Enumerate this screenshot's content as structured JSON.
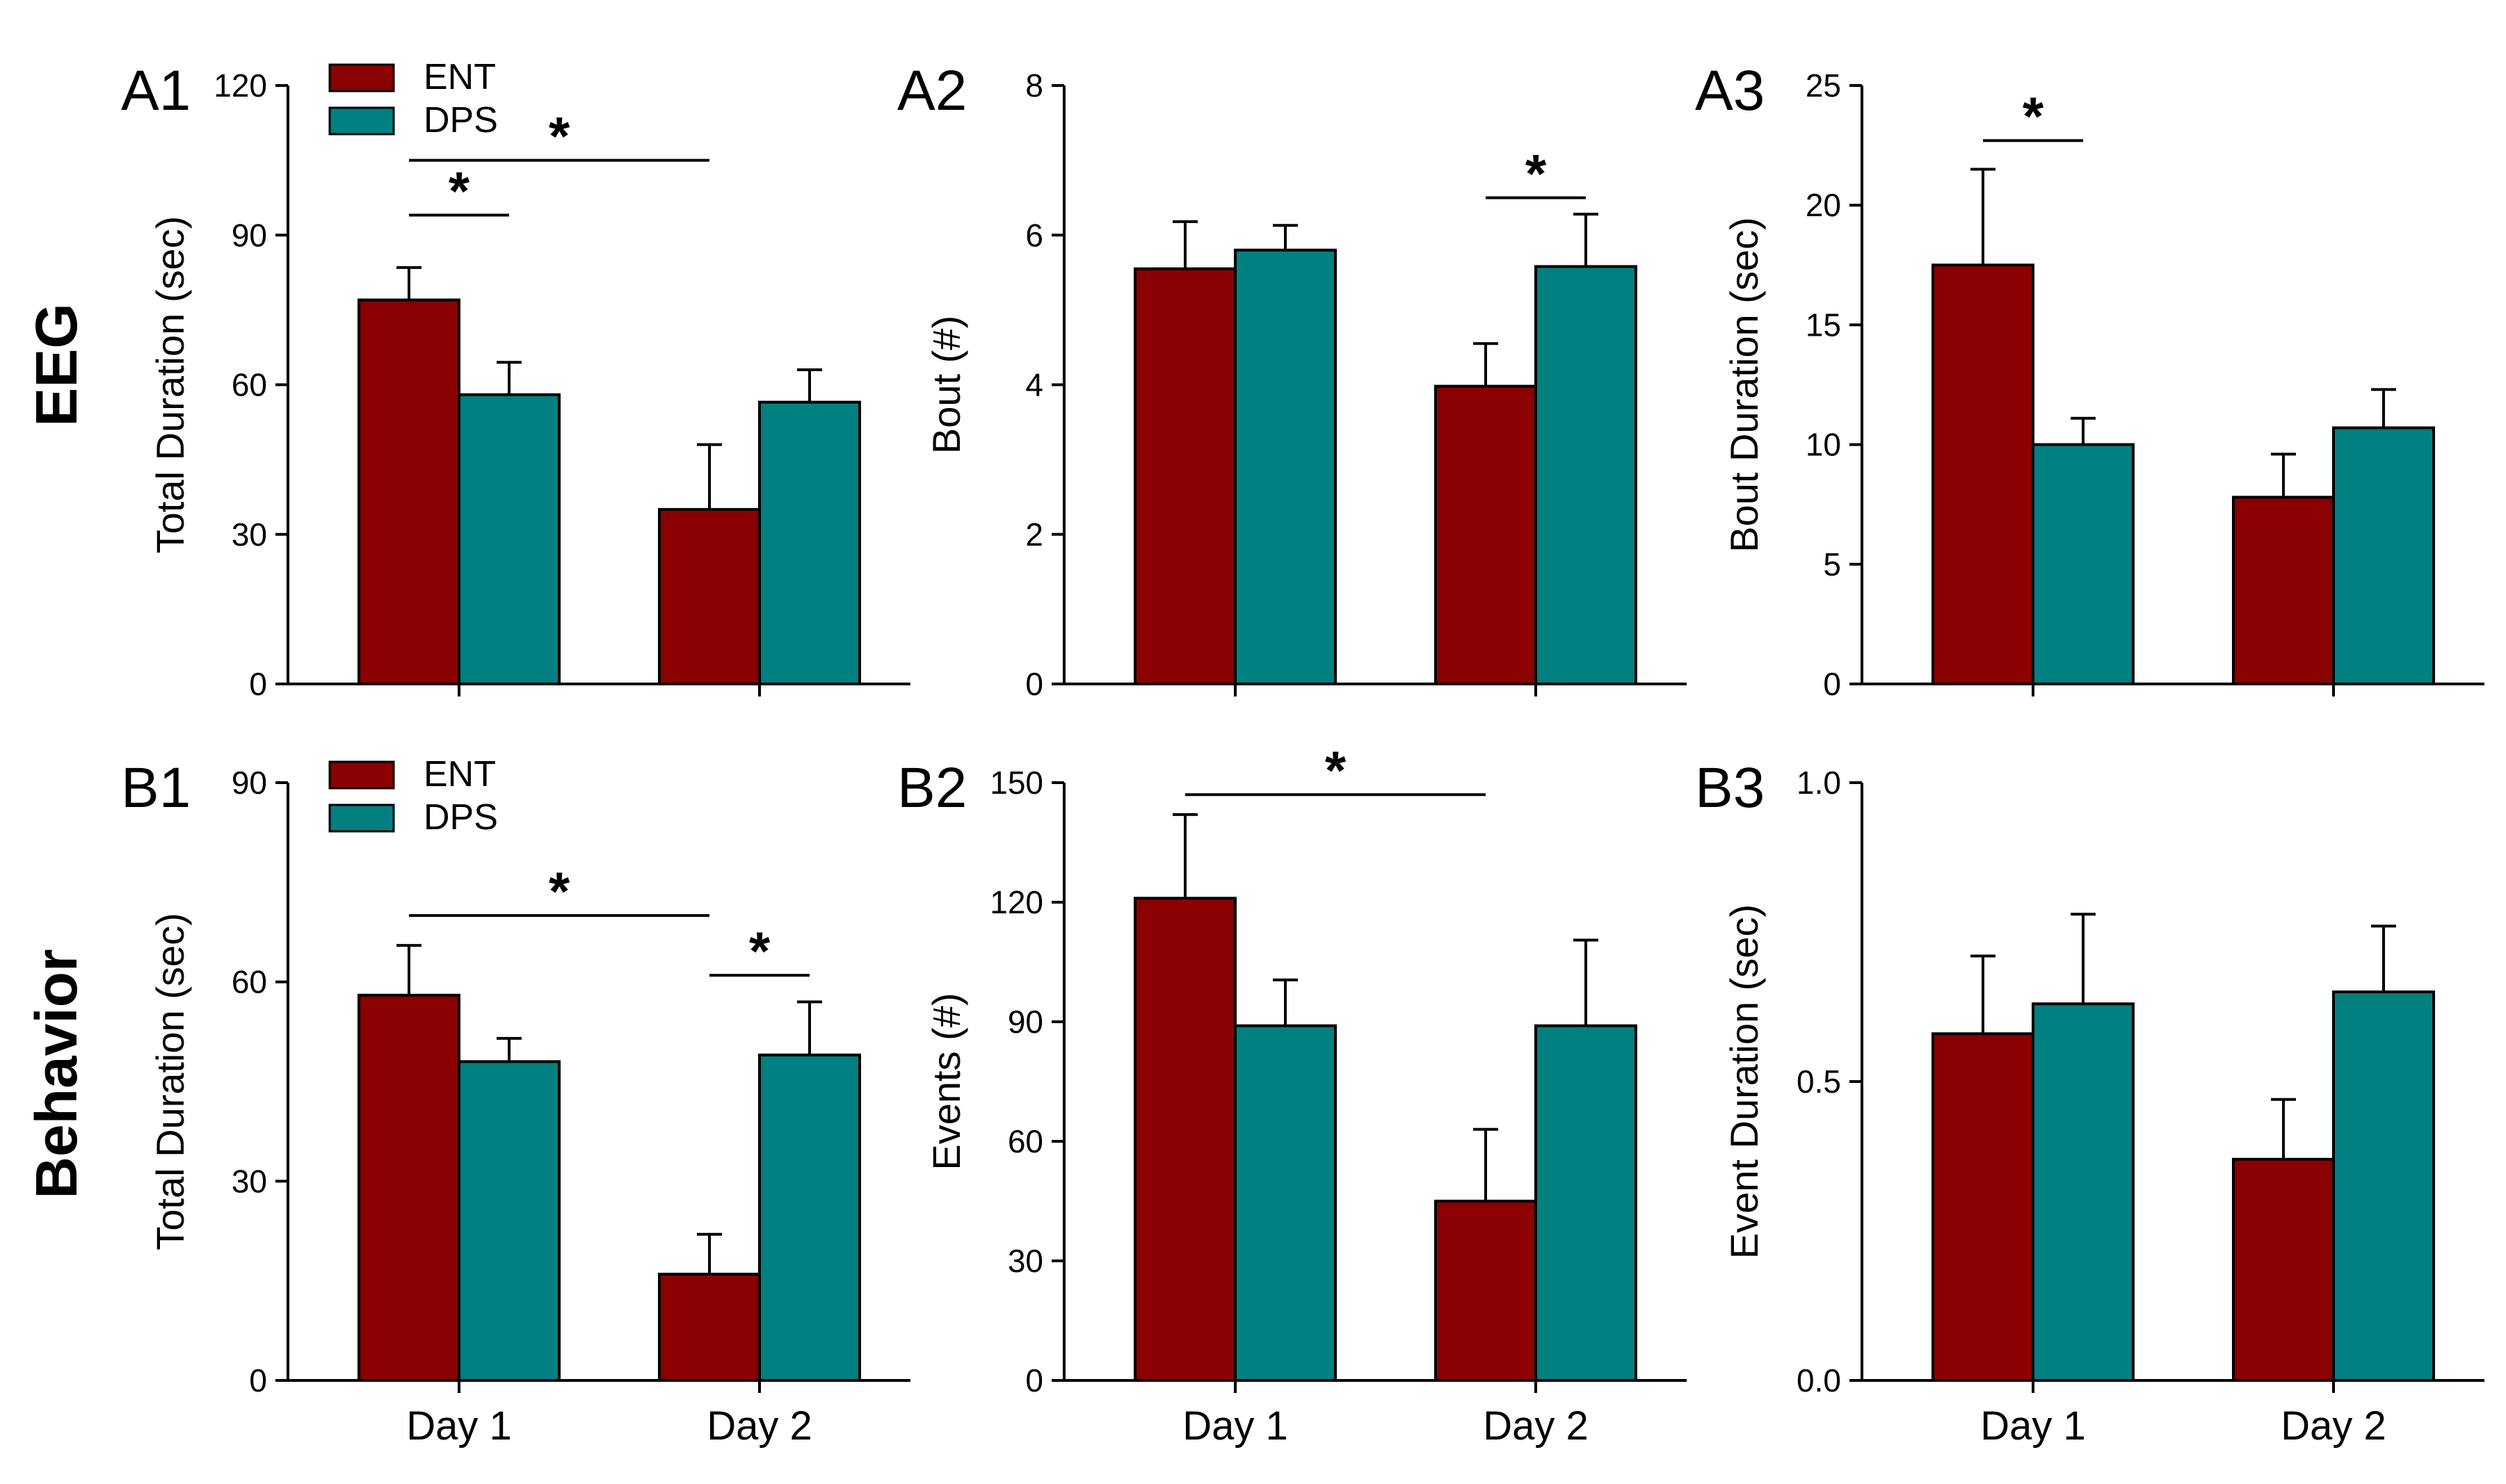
{
  "row_labels": [
    "EEG",
    "Behavior"
  ],
  "colors": {
    "ENT": "#8b0000",
    "DPS": "#008080"
  },
  "chart_data": [
    {
      "panel": "A1",
      "row": 0,
      "col": 0,
      "type": "bar",
      "categories": [
        "Day 1",
        "Day 2"
      ],
      "show_categories": false,
      "ylabel": "Total Duration (sec)",
      "ylim": [
        0,
        120
      ],
      "yticks": [
        0,
        30,
        60,
        90,
        120
      ],
      "legend": true,
      "series": [
        {
          "name": "ENT",
          "values": [
            77,
            35
          ],
          "errors": [
            6.5,
            13
          ]
        },
        {
          "name": "DPS",
          "values": [
            58,
            56.5
          ],
          "errors": [
            6.5,
            6.5
          ]
        }
      ],
      "significance": [
        {
          "from": [
            0,
            0
          ],
          "to": [
            0,
            1
          ],
          "y": 94,
          "label": "*"
        },
        {
          "from": [
            0,
            0
          ],
          "to": [
            1,
            0
          ],
          "y": 105,
          "label": "*"
        }
      ]
    },
    {
      "panel": "A2",
      "row": 0,
      "col": 1,
      "type": "bar",
      "categories": [
        "Day 1",
        "Day 2"
      ],
      "show_categories": false,
      "ylabel": "Bout (#)",
      "ylim": [
        0,
        8
      ],
      "yticks": [
        0,
        2,
        4,
        6,
        8
      ],
      "legend": false,
      "series": [
        {
          "name": "ENT",
          "values": [
            5.55,
            3.98
          ],
          "errors": [
            0.63,
            0.57
          ]
        },
        {
          "name": "DPS",
          "values": [
            5.8,
            5.58
          ],
          "errors": [
            0.33,
            0.7
          ]
        }
      ],
      "significance": [
        {
          "from": [
            1,
            0
          ],
          "to": [
            1,
            1
          ],
          "y": 6.5,
          "label": "*"
        }
      ]
    },
    {
      "panel": "A3",
      "row": 0,
      "col": 2,
      "type": "bar",
      "categories": [
        "Day 1",
        "Day 2"
      ],
      "show_categories": false,
      "ylabel": "Bout Duration (sec)",
      "ylim": [
        0,
        25
      ],
      "yticks": [
        0,
        5,
        10,
        15,
        20,
        25
      ],
      "legend": false,
      "series": [
        {
          "name": "ENT",
          "values": [
            17.5,
            7.8
          ],
          "errors": [
            4.0,
            1.8
          ]
        },
        {
          "name": "DPS",
          "values": [
            10.0,
            10.7
          ],
          "errors": [
            1.1,
            1.6
          ]
        }
      ],
      "significance": [
        {
          "from": [
            0,
            0
          ],
          "to": [
            0,
            1
          ],
          "y": 22.7,
          "label": "*"
        }
      ]
    },
    {
      "panel": "B1",
      "row": 1,
      "col": 0,
      "type": "bar",
      "categories": [
        "Day 1",
        "Day 2"
      ],
      "show_categories": true,
      "ylabel": "Total Duration (sec)",
      "ylim": [
        0,
        90
      ],
      "yticks": [
        0,
        30,
        60,
        90
      ],
      "legend": true,
      "series": [
        {
          "name": "ENT",
          "values": [
            58,
            16
          ],
          "errors": [
            7.5,
            6
          ]
        },
        {
          "name": "DPS",
          "values": [
            48,
            49
          ],
          "errors": [
            3.5,
            8
          ]
        }
      ],
      "significance": [
        {
          "from": [
            0,
            0
          ],
          "to": [
            1,
            0
          ],
          "y": 70,
          "label": "*"
        },
        {
          "from": [
            1,
            0
          ],
          "to": [
            1,
            1
          ],
          "y": 61,
          "label": "*"
        }
      ]
    },
    {
      "panel": "B2",
      "row": 1,
      "col": 1,
      "type": "bar",
      "categories": [
        "Day 1",
        "Day 2"
      ],
      "show_categories": true,
      "ylabel": "Events (#)",
      "ylim": [
        0,
        150
      ],
      "yticks": [
        0,
        30,
        60,
        90,
        120,
        150
      ],
      "legend": false,
      "series": [
        {
          "name": "ENT",
          "values": [
            121,
            45
          ],
          "errors": [
            21,
            18
          ]
        },
        {
          "name": "DPS",
          "values": [
            89,
            89
          ],
          "errors": [
            11.5,
            21.5
          ]
        }
      ],
      "significance": [
        {
          "from": [
            0,
            0
          ],
          "to": [
            1,
            0
          ],
          "y": 147,
          "label": "*"
        }
      ]
    },
    {
      "panel": "B3",
      "row": 1,
      "col": 2,
      "type": "bar",
      "categories": [
        "Day 1",
        "Day 2"
      ],
      "show_categories": true,
      "ylabel": "Event Duration (sec)",
      "ylim": [
        0,
        1
      ],
      "yticks": [
        0.0,
        0.5,
        1.0
      ],
      "ytick_decimals": 1,
      "legend": false,
      "series": [
        {
          "name": "ENT",
          "values": [
            0.58,
            0.37
          ],
          "errors": [
            0.13,
            0.1
          ]
        },
        {
          "name": "DPS",
          "values": [
            0.63,
            0.65
          ],
          "errors": [
            0.15,
            0.11
          ]
        }
      ],
      "significance": []
    }
  ]
}
